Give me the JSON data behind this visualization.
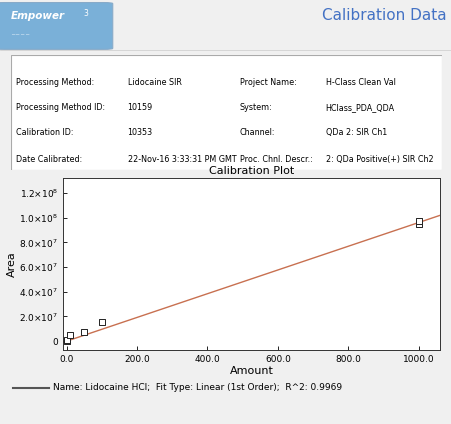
{
  "title": "Calibration Plot",
  "xlabel": "Amount",
  "ylabel": "Area",
  "xlim": [
    -10,
    1060
  ],
  "ylim": [
    -7000000.0,
    132000000.0
  ],
  "xticks": [
    0.0,
    200.0,
    400.0,
    600.0,
    800.0,
    1000.0
  ],
  "xtick_labels": [
    "0.0",
    "200.0",
    "400.0",
    "600.0",
    "800.0",
    "1000.0"
  ],
  "yticks": [
    0,
    20000000.0,
    40000000.0,
    60000000.0,
    80000000.0,
    100000000.0,
    120000000.0
  ],
  "data_points_x": [
    0.01,
    1.0,
    10.0,
    50.0,
    100.0,
    1000.0,
    1000.0
  ],
  "data_points_y": [
    300000,
    700000,
    4800000,
    7500000,
    15500000,
    95000000,
    97500000
  ],
  "fit_x": [
    -10,
    1060
  ],
  "fit_slope": 96000,
  "fit_intercept": 0,
  "fit_color": "#c87050",
  "marker_color": "#222222",
  "marker_face": "white",
  "marker_size": 18,
  "legend_line_color": "#555555",
  "legend_text": "Name: Lidocaine HCl;  Fit Type: Linear (1st Order);  R^2: 0.9969",
  "header_title": "Calibration Data",
  "header_title_color": "#4472c4",
  "logo_bg_color": "#7ab0d8",
  "logo_text": "Empower",
  "logo_superscript": "3",
  "fig_bg_color": "#f0f0f0",
  "plot_bg_color": "#ffffff",
  "info_border_color": "#aaaaaa",
  "left_labels": [
    "Processing Method:",
    "Processing Method ID:",
    "Calibration ID:",
    "Date Calibrated:"
  ],
  "left_vals": [
    "Lidocaine SIR",
    "10159",
    "10353",
    "22-Nov-16 3:33:31 PM GMT"
  ],
  "right_labels": [
    "Project Name:",
    "System:",
    "Channel:",
    "Proc. Chnl. Descr.:"
  ],
  "right_vals": [
    "H-Class Clean Val",
    "HClass_PDA_QDA",
    "QDa 2: SIR Ch1",
    "2: QDa Positive(+) SIR Ch2"
  ]
}
